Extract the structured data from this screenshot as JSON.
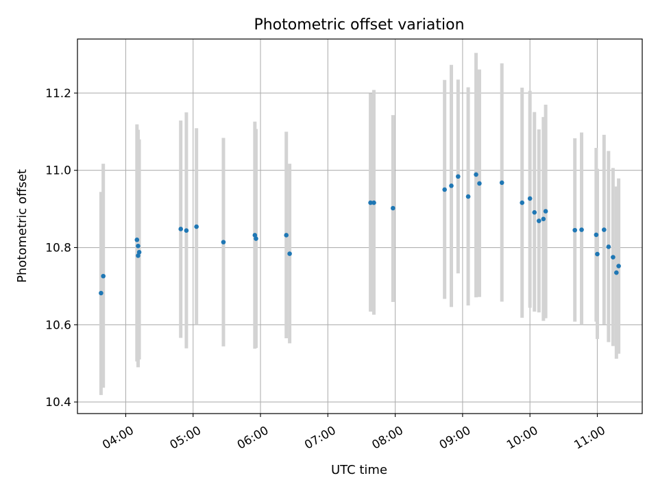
{
  "colors": {
    "marker": "#1f77b4",
    "errorbar": "#d3d3d3",
    "grid": "#b0b0b0",
    "axes": "#000000"
  },
  "chart_data": {
    "type": "scatter",
    "title": "Photometric offset variation",
    "xlabel": "UTC time",
    "ylabel": "Photometric offset",
    "xlim": [
      "03:17",
      "11:40"
    ],
    "ylim": [
      10.37,
      11.34
    ],
    "x_ticks": [
      "04:00",
      "05:00",
      "06:00",
      "07:00",
      "08:00",
      "09:00",
      "10:00",
      "11:00"
    ],
    "y_ticks": [
      "10.4",
      "10.6",
      "10.8",
      "11.0",
      "11.2"
    ],
    "grid": true,
    "points": [
      {
        "t": "03:38",
        "y": 10.682,
        "lo": 10.418,
        "hi": 10.944
      },
      {
        "t": "03:40",
        "y": 10.726,
        "lo": 10.437,
        "hi": 11.017
      },
      {
        "t": "04:10",
        "y": 10.82,
        "lo": 10.505,
        "hi": 11.119
      },
      {
        "t": "04:11",
        "y": 10.804,
        "lo": 10.49,
        "hi": 11.105
      },
      {
        "t": "04:11",
        "y": 10.779,
        "lo": 10.497,
        "hi": 11.09
      },
      {
        "t": "04:12",
        "y": 10.788,
        "lo": 10.51,
        "hi": 11.08
      },
      {
        "t": "04:49",
        "y": 10.848,
        "lo": 10.566,
        "hi": 11.129
      },
      {
        "t": "04:54",
        "y": 10.844,
        "lo": 10.539,
        "hi": 11.15
      },
      {
        "t": "05:03",
        "y": 10.854,
        "lo": 10.6,
        "hi": 11.109
      },
      {
        "t": "05:27",
        "y": 10.814,
        "lo": 10.544,
        "hi": 11.084
      },
      {
        "t": "05:55",
        "y": 10.832,
        "lo": 10.538,
        "hi": 11.126
      },
      {
        "t": "05:56",
        "y": 10.823,
        "lo": 10.54,
        "hi": 11.107
      },
      {
        "t": "06:23",
        "y": 10.832,
        "lo": 10.565,
        "hi": 11.1
      },
      {
        "t": "06:26",
        "y": 10.784,
        "lo": 10.552,
        "hi": 11.017
      },
      {
        "t": "07:38",
        "y": 10.916,
        "lo": 10.634,
        "hi": 11.199
      },
      {
        "t": "07:41",
        "y": 10.916,
        "lo": 10.626,
        "hi": 11.208
      },
      {
        "t": "07:58",
        "y": 10.902,
        "lo": 10.659,
        "hi": 11.143
      },
      {
        "t": "08:44",
        "y": 10.95,
        "lo": 10.667,
        "hi": 11.234
      },
      {
        "t": "08:50",
        "y": 10.96,
        "lo": 10.646,
        "hi": 11.273
      },
      {
        "t": "08:56",
        "y": 10.984,
        "lo": 10.733,
        "hi": 11.235
      },
      {
        "t": "09:05",
        "y": 10.932,
        "lo": 10.65,
        "hi": 11.215
      },
      {
        "t": "09:12",
        "y": 10.989,
        "lo": 10.671,
        "hi": 11.304
      },
      {
        "t": "09:15",
        "y": 10.966,
        "lo": 10.672,
        "hi": 11.261
      },
      {
        "t": "09:35",
        "y": 10.968,
        "lo": 10.66,
        "hi": 11.277
      },
      {
        "t": "09:53",
        "y": 10.916,
        "lo": 10.618,
        "hi": 11.214
      },
      {
        "t": "10:00",
        "y": 10.927,
        "lo": 10.644,
        "hi": 11.206
      },
      {
        "t": "10:04",
        "y": 10.891,
        "lo": 10.634,
        "hi": 11.151
      },
      {
        "t": "10:08",
        "y": 10.869,
        "lo": 10.632,
        "hi": 11.106
      },
      {
        "t": "10:12",
        "y": 10.874,
        "lo": 10.61,
        "hi": 11.138
      },
      {
        "t": "10:14",
        "y": 10.894,
        "lo": 10.617,
        "hi": 11.17
      },
      {
        "t": "10:40",
        "y": 10.845,
        "lo": 10.608,
        "hi": 11.083
      },
      {
        "t": "10:46",
        "y": 10.846,
        "lo": 10.6,
        "hi": 11.098
      },
      {
        "t": "10:59",
        "y": 10.833,
        "lo": 10.608,
        "hi": 11.058
      },
      {
        "t": "11:00",
        "y": 10.783,
        "lo": 10.563,
        "hi": 11.004
      },
      {
        "t": "11:06",
        "y": 10.846,
        "lo": 10.601,
        "hi": 11.092
      },
      {
        "t": "11:10",
        "y": 10.802,
        "lo": 10.555,
        "hi": 11.05
      },
      {
        "t": "11:14",
        "y": 10.775,
        "lo": 10.545,
        "hi": 11.006
      },
      {
        "t": "11:17",
        "y": 10.735,
        "lo": 10.512,
        "hi": 10.958
      },
      {
        "t": "11:19",
        "y": 10.752,
        "lo": 10.525,
        "hi": 10.979
      }
    ]
  }
}
